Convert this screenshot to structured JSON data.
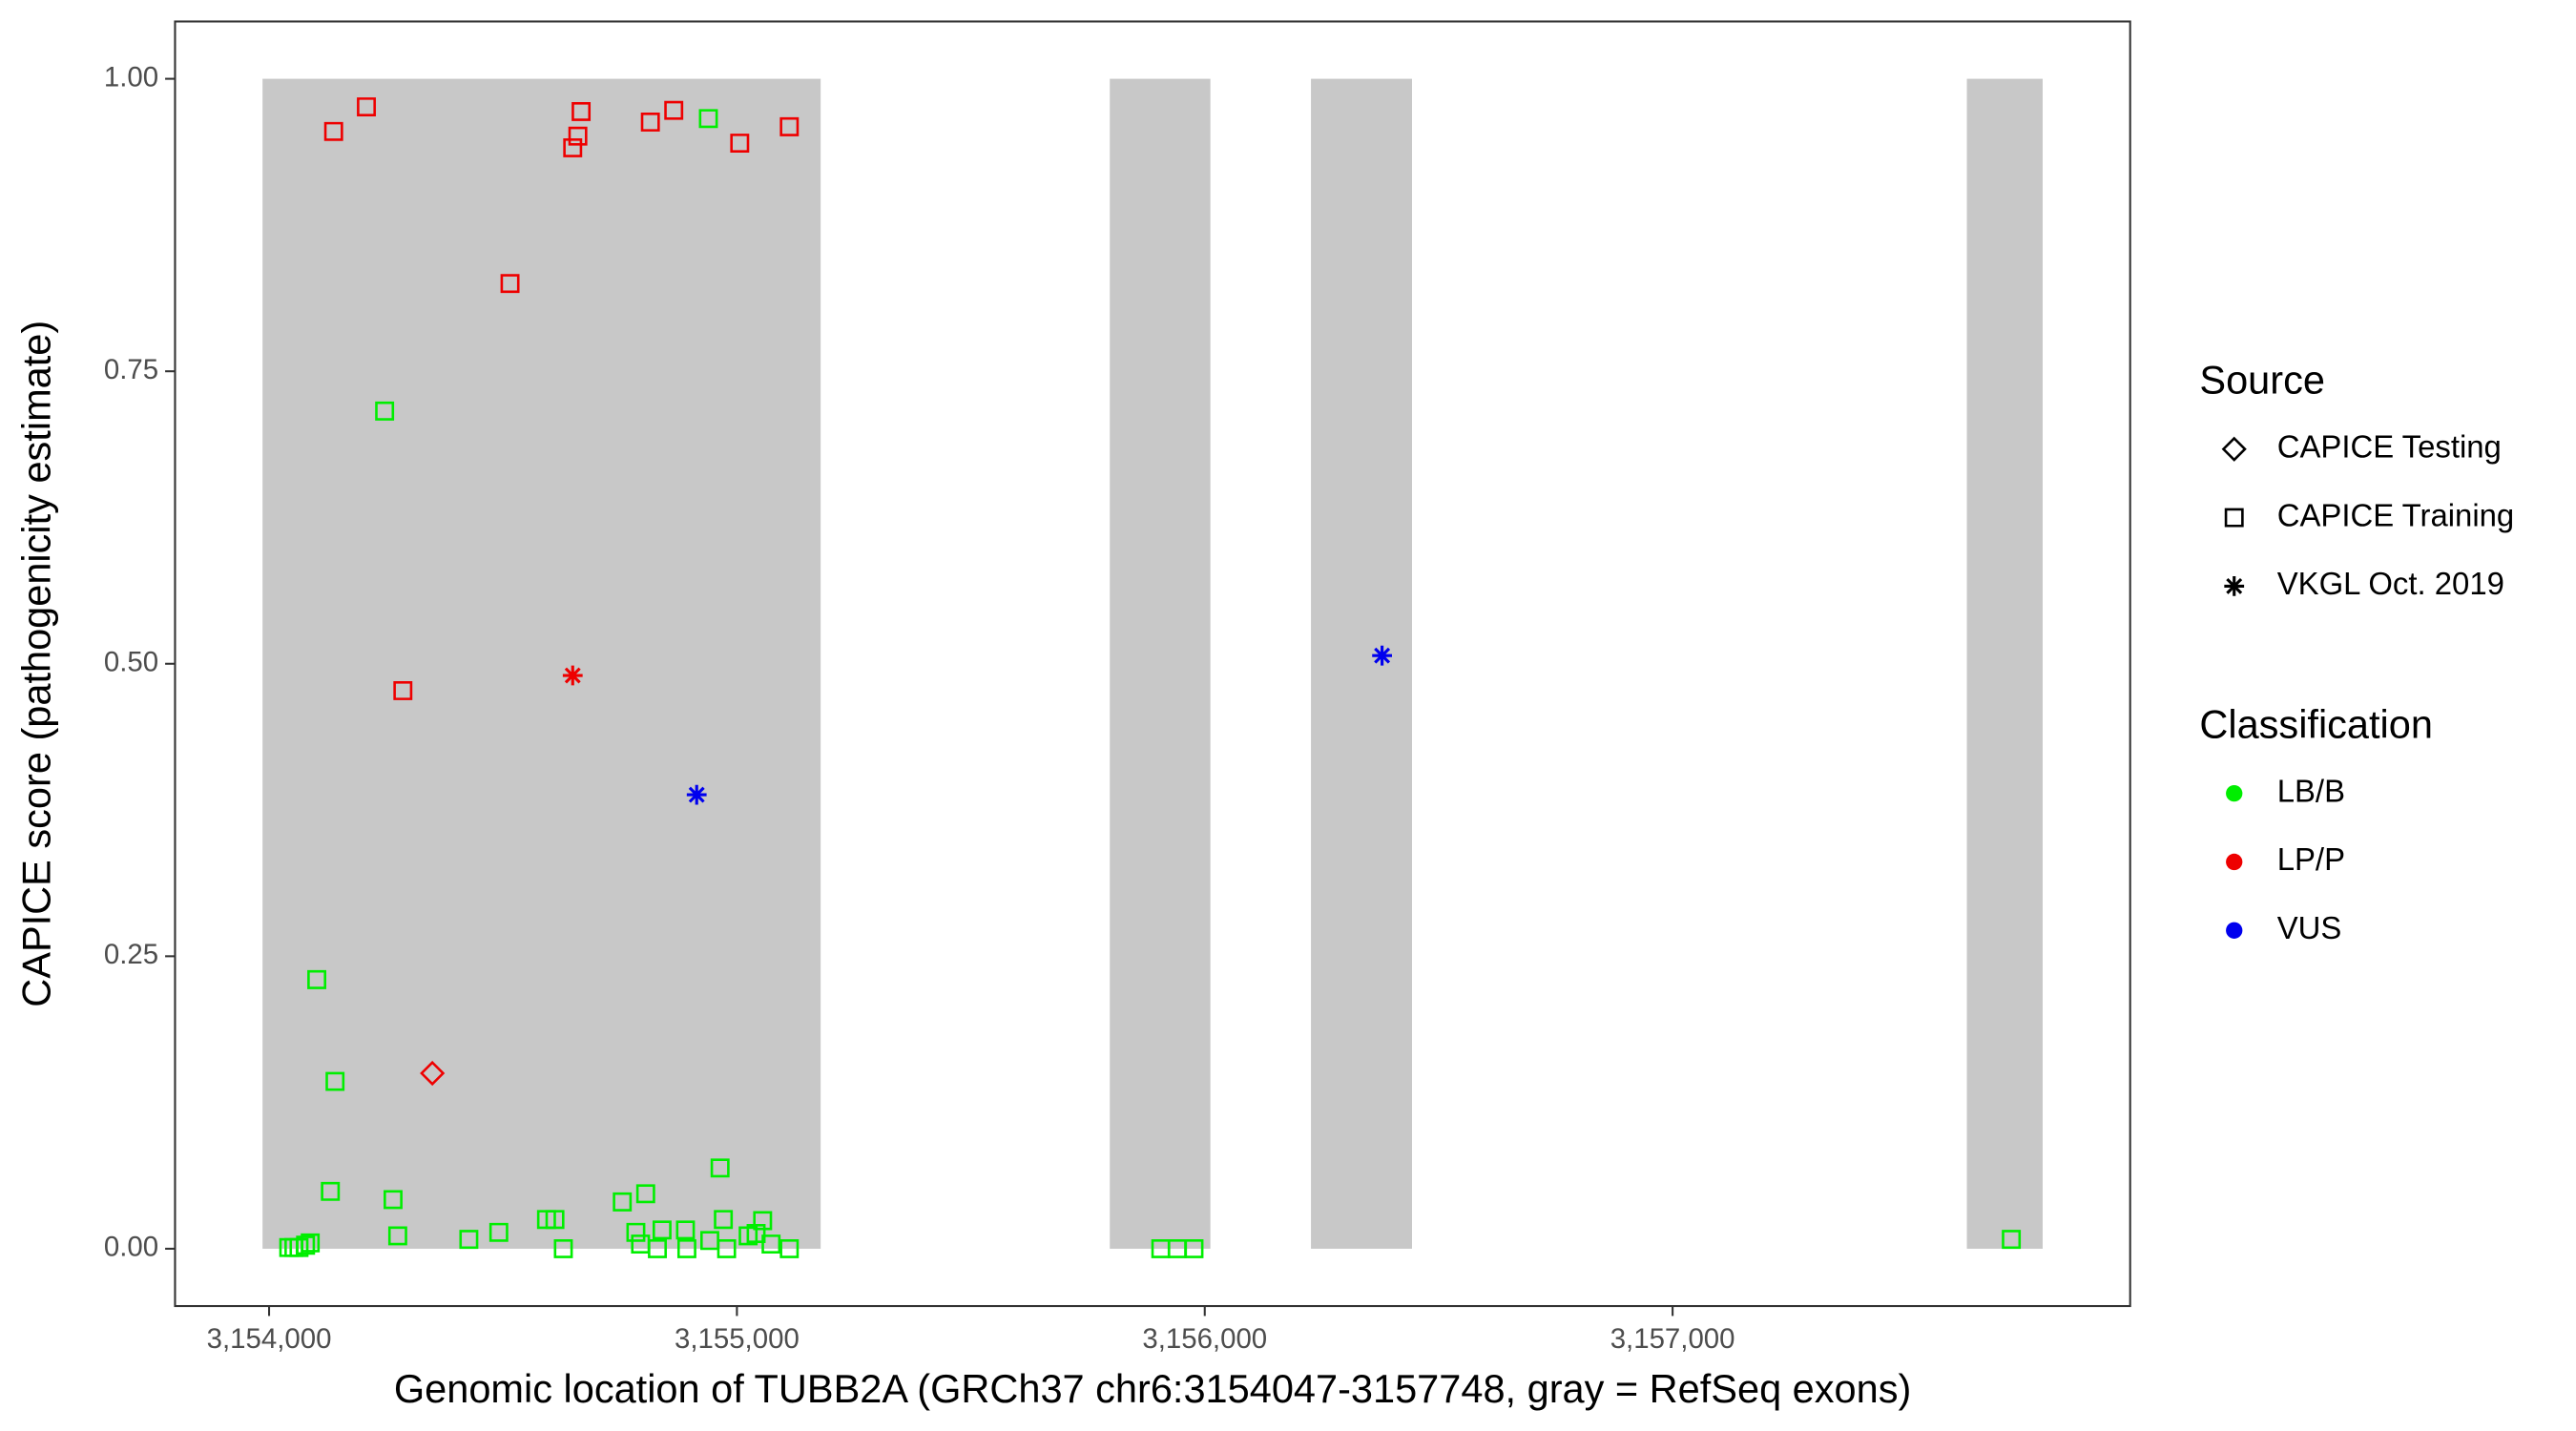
{
  "chart_data": {
    "type": "scatter",
    "x_label": "Genomic location of TUBB2A (GRCh37 chr6:3154047-3157748, gray = RefSeq exons)",
    "y_label": "CAPICE score (pathogenicity estimate)",
    "xlim": [
      3153799,
      3157978
    ],
    "ylim": [
      -0.049,
      1.049
    ],
    "xticks": [
      {
        "value": 3154000,
        "label": "3,154,000"
      },
      {
        "value": 3155000,
        "label": "3,155,000"
      },
      {
        "value": 3156000,
        "label": "3,156,000"
      },
      {
        "value": 3157000,
        "label": "3,157,000"
      }
    ],
    "yticks": [
      {
        "value": 0,
        "label": "0.00"
      },
      {
        "value": 0.25,
        "label": "0.25"
      },
      {
        "value": 0.5,
        "label": "0.50"
      },
      {
        "value": 0.75,
        "label": "0.75"
      },
      {
        "value": 1,
        "label": "1.00"
      }
    ],
    "exons": [
      {
        "start": 3153986,
        "end": 3155179
      },
      {
        "start": 3155797,
        "end": 3156012
      },
      {
        "start": 3156227,
        "end": 3156443
      },
      {
        "start": 3157629,
        "end": 3157791
      }
    ],
    "exon_color": "#c8c8c8",
    "legends": [
      {
        "title": "Source",
        "items": [
          {
            "label": "CAPICE Testing",
            "shape": "diamond"
          },
          {
            "label": "CAPICE Training",
            "shape": "square"
          },
          {
            "label": "VKGL Oct. 2019",
            "shape": "star"
          }
        ]
      },
      {
        "title": "Classification",
        "items": [
          {
            "label": "LB/B",
            "color": "#00ee00"
          },
          {
            "label": "LP/P",
            "color": "#ee0000"
          },
          {
            "label": "VUS",
            "color": "#0000ee"
          }
        ]
      }
    ],
    "series": [
      {
        "source": "CAPICE Training",
        "classification": "LP/P",
        "x": [
          3154138,
          3154208,
          3154515,
          3154649,
          3154660,
          3154667,
          3154815,
          3154865,
          3155006,
          3155112,
          3154286
        ],
        "values": [
          0.955,
          0.976,
          0.825,
          0.941,
          0.951,
          0.972,
          0.963,
          0.973,
          0.945,
          0.959,
          0.477
        ]
      },
      {
        "source": "CAPICE Testing",
        "classification": "LP/P",
        "x": [
          3154349
        ],
        "values": [
          0.15
        ]
      },
      {
        "source": "VKGL Oct. 2019",
        "classification": "LP/P",
        "x": [
          3154649
        ],
        "values": [
          0.49
        ]
      },
      {
        "source": "VKGL Oct. 2019",
        "classification": "VUS",
        "x": [
          3154914,
          3156379
        ],
        "values": [
          0.388,
          0.507
        ]
      },
      {
        "source": "CAPICE Training",
        "classification": "LB/B",
        "x": [
          3154939,
          3154247,
          3154102,
          3154141,
          3154131,
          3154265,
          3154275,
          3154427,
          3154491,
          3154593,
          3154611,
          3154629,
          3154755,
          3154805,
          3154784,
          3154794,
          3154830,
          3154840,
          3154890,
          3154893,
          3154942,
          3154964,
          3154971,
          3154978,
          3155024,
          3155041,
          3155055,
          3155073,
          3155112,
          3154042,
          3154053,
          3154064,
          3154078,
          3154088,
          3155906,
          3155941,
          3155977,
          3157724
        ],
        "values": [
          0.966,
          0.716,
          0.23,
          0.143,
          0.049,
          0.042,
          0.011,
          0.008,
          0.014,
          0.025,
          0.025,
          0.0,
          0.04,
          0.047,
          0.014,
          0.004,
          0.0,
          0.016,
          0.016,
          0.0,
          0.007,
          0.069,
          0.025,
          0.0,
          0.011,
          0.013,
          0.024,
          0.004,
          0.0,
          0.001,
          0.001,
          0.001,
          0.003,
          0.005,
          0.0,
          0.0,
          0.0,
          0.008
        ]
      }
    ]
  }
}
